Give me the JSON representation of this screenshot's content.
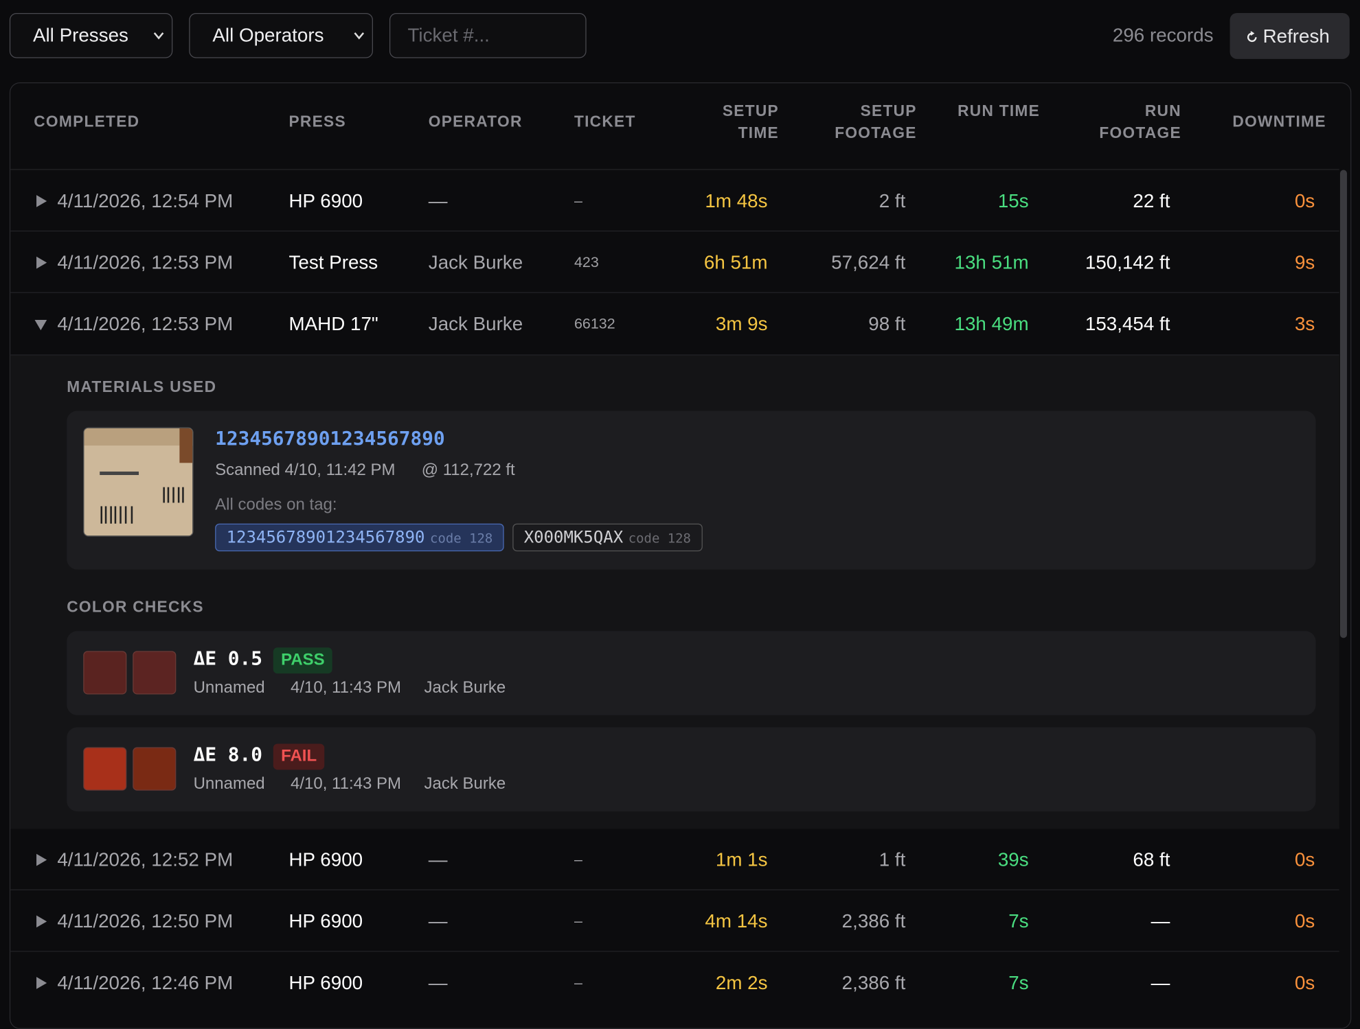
{
  "toolbar": {
    "press_filter": "All Presses",
    "operator_filter": "All Operators",
    "ticket_placeholder": "Ticket #...",
    "record_count": "296 records",
    "refresh": "Refresh"
  },
  "table": {
    "headers": [
      "COMPLETED",
      "PRESS",
      "OPERATOR",
      "TICKET",
      "SETUP TIME",
      "SETUP FOOTAGE",
      "RUN TIME",
      "RUN FOOTAGE",
      "DOWNTIME"
    ],
    "rows": [
      [
        "4/11/2026, 12:54 PM",
        "HP 6900",
        "—",
        "–",
        "1m 48s",
        "2 ft",
        "15s",
        "22 ft",
        "0s"
      ],
      [
        "4/11/2026, 12:53 PM",
        "Test Press",
        "Jack Burke",
        "423",
        "6h 51m",
        "57,624 ft",
        "13h 51m",
        "150,142 ft",
        "9s"
      ],
      [
        "4/11/2026, 12:53 PM",
        "MAHD 17\"",
        "Jack Burke",
        "66132",
        "3m 9s",
        "98 ft",
        "13h 49m",
        "153,454 ft",
        "3s"
      ],
      [
        "4/11/2026, 12:52 PM",
        "HP 6900",
        "—",
        "–",
        "1m 1s",
        "1 ft",
        "39s",
        "68 ft",
        "0s"
      ],
      [
        "4/11/2026, 12:50 PM",
        "HP 6900",
        "—",
        "–",
        "4m 14s",
        "2,386 ft",
        "7s",
        "—",
        "0s"
      ],
      [
        "4/11/2026, 12:46 PM",
        "HP 6900",
        "—",
        "–",
        "2m 2s",
        "2,386 ft",
        "7s",
        "—",
        "0s"
      ]
    ]
  },
  "details": {
    "materials_title": "MATERIALS USED",
    "material": {
      "code": "12345678901234567890",
      "scanned": "Scanned 4/10, 11:42 PM",
      "footage": "@ 112,722 ft",
      "codes_label": "All codes on tag:",
      "codes": [
        {
          "value": "12345678901234567890",
          "type": "code 128"
        },
        {
          "value": "X000MK5QAX",
          "type": "code 128"
        }
      ]
    },
    "color_checks_title": "COLOR CHECKS",
    "checks": [
      {
        "delta": "ΔE 0.5",
        "status": "PASS",
        "name": "Unnamed",
        "time": "4/10, 11:43 PM",
        "operator": "Jack Burke"
      },
      {
        "delta": "ΔE 8.0",
        "status": "FAIL",
        "name": "Unnamed",
        "time": "4/10, 11:43 PM",
        "operator": "Jack Burke"
      }
    ]
  }
}
